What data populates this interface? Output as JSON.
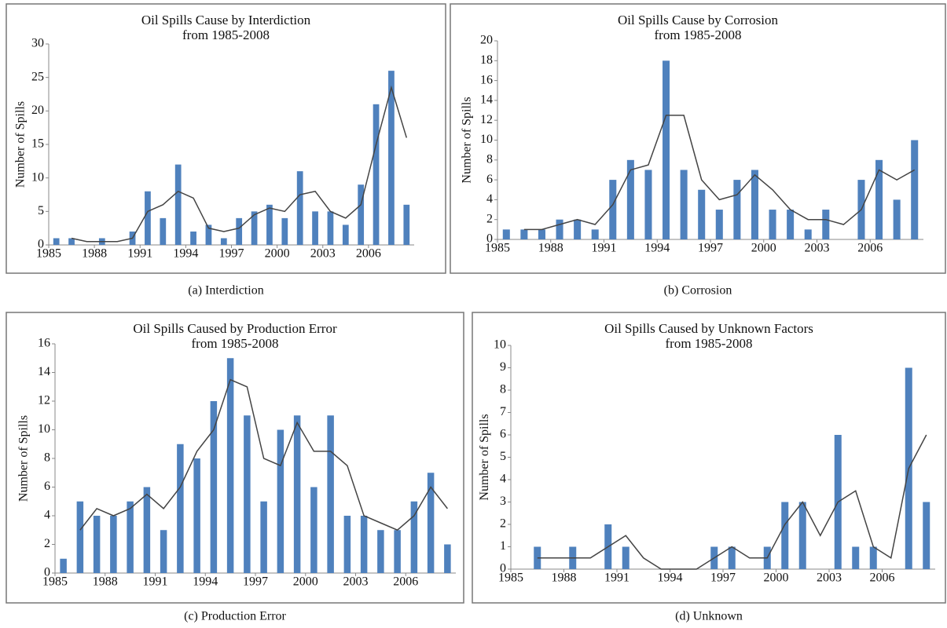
{
  "chart_data": [
    {
      "type": "bar",
      "title": "Oil Spills Cause by Interdiction",
      "subtitle": "from 1985-2008",
      "y_label": "Number of Spills",
      "caption": "(a) Interdiction",
      "categories": [
        "1985",
        null,
        null,
        "1988",
        null,
        null,
        "1991",
        null,
        null,
        "1994",
        null,
        null,
        "1997",
        null,
        null,
        "2000",
        null,
        null,
        "2003",
        null,
        null,
        "2006",
        null,
        null
      ],
      "values": [
        1,
        1,
        0,
        1,
        0,
        2,
        8,
        4,
        12,
        2,
        3,
        1,
        4,
        5,
        6,
        4,
        11,
        5,
        5,
        3,
        9,
        21,
        26,
        6
      ],
      "color": "#4f81bd",
      "line_values": [
        null,
        1,
        0.5,
        0.5,
        0.5,
        1,
        5,
        6,
        8,
        7,
        2.5,
        2,
        2.5,
        4.5,
        5.5,
        5,
        7.5,
        8,
        5,
        4,
        6,
        15,
        23.5,
        16
      ],
      "line_color": "#444444",
      "ylim": [
        0,
        30
      ],
      "yticks": [
        0,
        5,
        10,
        15,
        20,
        25,
        30
      ],
      "grid": false
    },
    {
      "type": "bar",
      "title": "Oil Spills Cause by Corrosion",
      "subtitle": "from 1985-2008",
      "y_label": "Number of Spills",
      "caption": "(b) Corrosion",
      "categories": [
        "1985",
        null,
        null,
        "1988",
        null,
        null,
        "1991",
        null,
        null,
        "1994",
        null,
        null,
        "1997",
        null,
        null,
        "2000",
        null,
        null,
        "2003",
        null,
        null,
        "2006",
        null,
        null
      ],
      "values": [
        1,
        1,
        1,
        2,
        2,
        1,
        6,
        8,
        7,
        18,
        7,
        5,
        3,
        6,
        7,
        3,
        3,
        1,
        3,
        0,
        6,
        8,
        4,
        10
      ],
      "color": "#4f81bd",
      "line_values": [
        null,
        1,
        1,
        1.5,
        2,
        1.5,
        3.5,
        7,
        7.5,
        12.5,
        12.5,
        6,
        4,
        4.5,
        6.5,
        5,
        3,
        2,
        2,
        1.5,
        3,
        7,
        6,
        7
      ],
      "line_color": "#444444",
      "ylim": [
        0,
        20
      ],
      "yticks": [
        0,
        2,
        4,
        6,
        8,
        10,
        12,
        14,
        16,
        18,
        20
      ],
      "grid": false
    },
    {
      "type": "bar",
      "title": "Oil Spills Caused by Production Error",
      "subtitle": "from 1985-2008",
      "y_label": "Number of Spills",
      "caption": "(c) Production Error",
      "categories": [
        "1985",
        null,
        null,
        "1988",
        null,
        null,
        "1991",
        null,
        null,
        "1994",
        null,
        null,
        "1997",
        null,
        null,
        "2000",
        null,
        null,
        "2003",
        null,
        null,
        "2006",
        null,
        null
      ],
      "values": [
        1,
        5,
        4,
        4,
        5,
        6,
        3,
        9,
        8,
        12,
        15,
        11,
        5,
        10,
        11,
        6,
        11,
        4,
        4,
        3,
        3,
        5,
        7,
        2
      ],
      "color": "#4f81bd",
      "line_values": [
        null,
        3,
        4.5,
        4,
        4.5,
        5.5,
        4.5,
        6,
        8.5,
        10,
        13.5,
        13,
        8,
        7.5,
        10.5,
        8.5,
        8.5,
        7.5,
        4,
        3.5,
        3,
        4,
        6,
        4.5
      ],
      "line_color": "#444444",
      "ylim": [
        0,
        16
      ],
      "yticks": [
        0,
        2,
        4,
        6,
        8,
        10,
        12,
        14,
        16
      ],
      "grid": false
    },
    {
      "type": "bar",
      "title": "Oil Spills Caused by Unknown Factors",
      "subtitle": "from 1985-2008",
      "y_label": "Number of Spills",
      "caption": "(d) Unknown",
      "categories": [
        "1985",
        null,
        null,
        "1988",
        null,
        null,
        "1991",
        null,
        null,
        "1994",
        null,
        null,
        "1997",
        null,
        null,
        "2000",
        null,
        null,
        "2003",
        null,
        null,
        "2006",
        null,
        null
      ],
      "values": [
        0,
        1,
        0,
        1,
        0,
        2,
        1,
        0,
        0,
        0,
        0,
        1,
        1,
        0,
        1,
        3,
        3,
        0,
        6,
        1,
        1,
        0,
        9,
        3
      ],
      "color": "#4f81bd",
      "line_values": [
        null,
        0.5,
        0.5,
        0.5,
        0.5,
        1,
        1.5,
        0.5,
        0,
        0,
        0,
        0.5,
        1,
        0.5,
        0.5,
        2,
        3,
        1.5,
        3,
        3.5,
        1,
        0.5,
        4.5,
        6
      ],
      "line_color": "#444444",
      "ylim": [
        0,
        10
      ],
      "yticks": [
        0,
        1,
        2,
        3,
        4,
        5,
        6,
        7,
        8,
        9,
        10
      ],
      "grid": false
    }
  ]
}
